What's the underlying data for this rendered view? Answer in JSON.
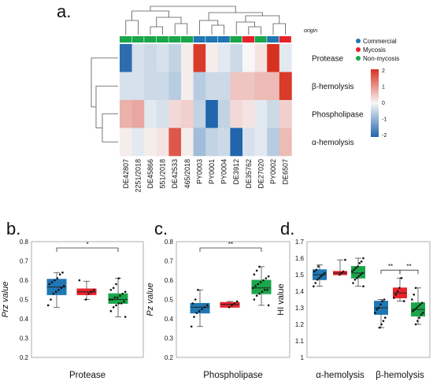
{
  "panel_labels": {
    "a": "a.",
    "b": "b.",
    "c": "c.",
    "d": "d."
  },
  "heatmap": {
    "track_label": "origin",
    "columns": [
      "DE42807",
      "2251/2018",
      "DE45866",
      "551/2018",
      "DE42533",
      "465/2018",
      "PY0003",
      "PY0001",
      "PY0004",
      "DE3912",
      "DE35762",
      "DE27020",
      "PY0002",
      "DE6507"
    ],
    "column_origin": [
      "Non-mycosis",
      "Non-mycosis",
      "Non-mycosis",
      "Non-mycosis",
      "Non-mycosis",
      "Non-mycosis",
      "Commercial",
      "Commercial",
      "Commercial",
      "Non-mycosis",
      "Mycosis",
      "Non-mycosis",
      "Commercial",
      "Mycosis"
    ],
    "rows": [
      "Protease",
      "β-hemolysis",
      "Phospholipase",
      "α-hemolysis"
    ],
    "values": [
      [
        -1.9,
        -0.3,
        -0.4,
        -0.3,
        -0.5,
        0.1,
        1.9,
        0.1,
        -0.2,
        -0.4,
        0.0,
        0.2,
        2.0,
        -0.2
      ],
      [
        -0.3,
        -0.3,
        -0.4,
        -0.4,
        -0.6,
        0.1,
        -0.6,
        -0.4,
        -0.4,
        0.5,
        0.5,
        0.6,
        0.6,
        1.9
      ],
      [
        0.7,
        0.8,
        -0.2,
        -0.3,
        0.3,
        0.4,
        -0.5,
        -2.0,
        -0.5,
        0.3,
        0.2,
        -0.2,
        -0.4,
        0.4
      ],
      [
        0.1,
        -0.2,
        0.1,
        0.2,
        1.6,
        0.1,
        -0.8,
        -0.5,
        -0.4,
        -2.0,
        -0.3,
        -0.2,
        -0.6,
        0.6
      ]
    ],
    "color_scale": {
      "min": -2,
      "max": 2,
      "ticks": [
        "2",
        "1",
        "0",
        "-1",
        "-2"
      ]
    },
    "legend": [
      {
        "label": "Commercial",
        "color": "#1f77b4"
      },
      {
        "label": "Mycosis",
        "color": "#e8222c"
      },
      {
        "label": "Non-mycosis",
        "color": "#1aa64a"
      }
    ]
  },
  "colors": {
    "Commercial": "#1f77b4",
    "Mycosis": "#e8222c",
    "Non-mycosis": "#1aa64a",
    "high": "#d7301f",
    "mid": "#f7f7f7",
    "low": "#2166ac"
  },
  "chart_data": [
    {
      "type": "heatmap",
      "title": "",
      "x": [
        "DE42807",
        "2251/2018",
        "DE45866",
        "551/2018",
        "DE42533",
        "465/2018",
        "PY0003",
        "PY0001",
        "PY0004",
        "DE3912",
        "DE35762",
        "DE27020",
        "PY0002",
        "DE6507"
      ],
      "y": [
        "Protease",
        "β-hemolysis",
        "Phospholipase",
        "α-hemolysis"
      ],
      "legend": [
        "Commercial",
        "Mycosis",
        "Non-mycosis"
      ]
    },
    {
      "type": "box",
      "panel": "b",
      "categories": [
        "Protease"
      ],
      "ylabel": "Prz value",
      "ylim": [
        0.2,
        0.8
      ],
      "yticks": [
        "0.2",
        "0.3",
        "0.4",
        "0.5",
        "0.6",
        "0.7",
        "0.8"
      ],
      "significance": [
        {
          "from": "Commercial",
          "to": "Non-mycosis",
          "label": "*"
        }
      ],
      "series": [
        {
          "name": "Commercial",
          "min": 0.46,
          "q1": 0.525,
          "median": 0.565,
          "q3": 0.605,
          "max": 0.64,
          "points": [
            0.47,
            0.5,
            0.53,
            0.54,
            0.55,
            0.56,
            0.57,
            0.58,
            0.59,
            0.6,
            0.61,
            0.63,
            0.64
          ]
        },
        {
          "name": "Mycosis",
          "min": 0.5,
          "q1": 0.525,
          "median": 0.54,
          "q3": 0.555,
          "max": 0.595,
          "points": [
            0.5,
            0.53,
            0.54,
            0.55,
            0.6
          ]
        },
        {
          "name": "Non-mycosis",
          "min": 0.41,
          "q1": 0.48,
          "median": 0.5,
          "q3": 0.53,
          "max": 0.61,
          "points": [
            0.41,
            0.44,
            0.46,
            0.47,
            0.48,
            0.48,
            0.49,
            0.5,
            0.5,
            0.51,
            0.51,
            0.52,
            0.53,
            0.54,
            0.55,
            0.56,
            0.58,
            0.61
          ]
        }
      ]
    },
    {
      "type": "box",
      "panel": "c",
      "categories": [
        "Phospholipase"
      ],
      "ylabel": "Pz value",
      "ylim": [
        0.2,
        0.8
      ],
      "yticks": [
        "0.2",
        "0.3",
        "0.4",
        "0.5",
        "0.6",
        "0.7",
        "0.8"
      ],
      "significance": [
        {
          "from": "Commercial",
          "to": "Non-mycosis",
          "label": "**"
        }
      ],
      "series": [
        {
          "name": "Commercial",
          "min": 0.36,
          "q1": 0.43,
          "median": 0.46,
          "q3": 0.48,
          "max": 0.55,
          "points": [
            0.36,
            0.41,
            0.43,
            0.44,
            0.45,
            0.46,
            0.47,
            0.48,
            0.5,
            0.55
          ]
        },
        {
          "name": "Mycosis",
          "min": 0.46,
          "q1": 0.46,
          "median": 0.475,
          "q3": 0.485,
          "max": 0.49,
          "points": [
            0.46,
            0.47,
            0.48,
            0.49
          ]
        },
        {
          "name": "Non-mycosis",
          "min": 0.47,
          "q1": 0.53,
          "median": 0.56,
          "q3": 0.6,
          "max": 0.67,
          "points": [
            0.47,
            0.5,
            0.52,
            0.53,
            0.54,
            0.55,
            0.55,
            0.56,
            0.57,
            0.58,
            0.59,
            0.6,
            0.61,
            0.62,
            0.63,
            0.65,
            0.67
          ]
        }
      ]
    },
    {
      "type": "box",
      "panel": "d",
      "categories": [
        "α-hemolysis",
        "β-hemolysis"
      ],
      "ylabel": "HI value",
      "ylim": [
        1.0,
        1.7
      ],
      "yticks": [
        "1",
        "1.1",
        "1.2",
        "1.3",
        "1.4",
        "1.5",
        "1.6",
        "1.7"
      ],
      "significance": [
        {
          "category": "β-hemolysis",
          "from": "Commercial",
          "to": "Mycosis",
          "label": "**"
        },
        {
          "category": "β-hemolysis",
          "from": "Mycosis",
          "to": "Non-mycosis",
          "label": "**"
        }
      ],
      "series": [
        {
          "name": "Commercial",
          "category": "α-hemolysis",
          "min": 1.43,
          "q1": 1.47,
          "median": 1.5,
          "q3": 1.53,
          "max": 1.56,
          "points": [
            1.43,
            1.45,
            1.47,
            1.48,
            1.49,
            1.5,
            1.51,
            1.52,
            1.53,
            1.55
          ]
        },
        {
          "name": "Mycosis",
          "category": "α-hemolysis",
          "min": 1.5,
          "q1": 1.5,
          "median": 1.51,
          "q3": 1.52,
          "max": 1.59,
          "points": [
            1.5,
            1.51,
            1.52,
            1.59
          ]
        },
        {
          "name": "Non-mycosis",
          "category": "α-hemolysis",
          "min": 1.43,
          "q1": 1.48,
          "median": 1.51,
          "q3": 1.55,
          "max": 1.6,
          "points": [
            1.43,
            1.45,
            1.47,
            1.48,
            1.49,
            1.5,
            1.51,
            1.52,
            1.53,
            1.54,
            1.55,
            1.57,
            1.58,
            1.6
          ]
        },
        {
          "name": "Commercial",
          "category": "β-hemolysis",
          "min": 1.18,
          "q1": 1.26,
          "median": 1.3,
          "q3": 1.34,
          "max": 1.35,
          "points": [
            1.18,
            1.2,
            1.22,
            1.24,
            1.27,
            1.29,
            1.3,
            1.32,
            1.34,
            1.35
          ]
        },
        {
          "name": "Mycosis",
          "category": "β-hemolysis",
          "min": 1.34,
          "q1": 1.36,
          "median": 1.39,
          "q3": 1.42,
          "max": 1.48,
          "points": [
            1.34,
            1.36,
            1.38,
            1.4,
            1.42,
            1.48
          ]
        },
        {
          "name": "Non-mycosis",
          "category": "β-hemolysis",
          "min": 1.2,
          "q1": 1.25,
          "median": 1.29,
          "q3": 1.33,
          "max": 1.42,
          "points": [
            1.2,
            1.22,
            1.24,
            1.26,
            1.27,
            1.28,
            1.29,
            1.3,
            1.31,
            1.32,
            1.33,
            1.35,
            1.38,
            1.42
          ]
        }
      ]
    }
  ]
}
